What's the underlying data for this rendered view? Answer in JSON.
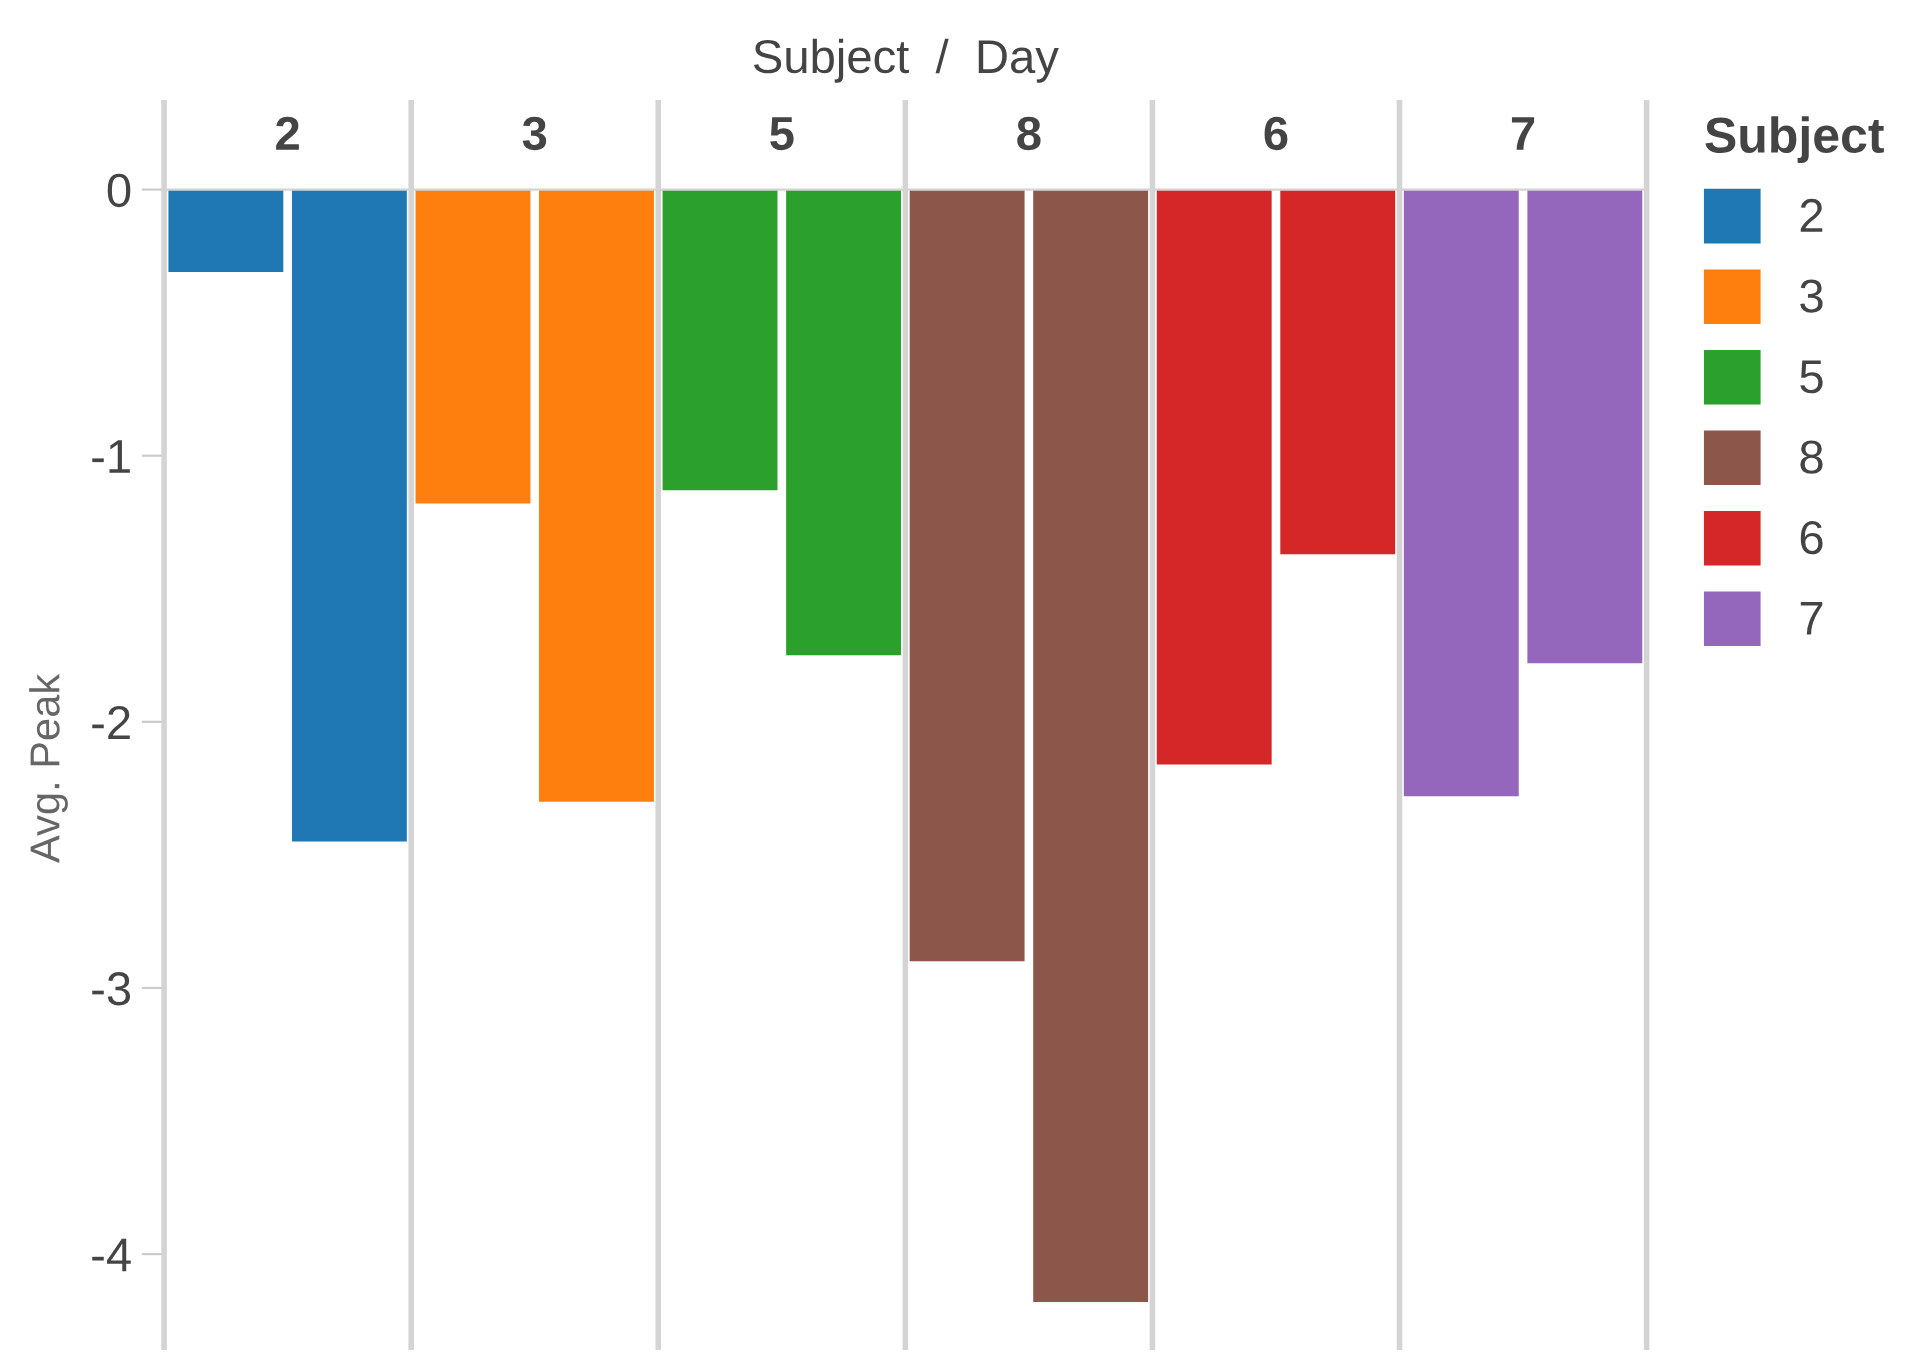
{
  "chart_data": {
    "type": "bar",
    "xlabel": "Subject  /  Day",
    "ylabel": "Avg. Peak",
    "legend_title": "Subject",
    "legend": "right",
    "categories": [
      null,
      null,
      null,
      null,
      null,
      null,
      null,
      null,
      null,
      null,
      null,
      null
    ],
    "series": [
      {
        "name": "2",
        "color": "#1f77b4",
        "values": [
          -0.31,
          -2.45,
          null,
          null,
          null,
          null,
          null,
          null,
          null,
          null,
          null,
          null
        ]
      },
      {
        "name": "3",
        "color": "#ff7f0e",
        "values": [
          null,
          null,
          -1.18,
          -2.3,
          null,
          null,
          null,
          null,
          null,
          null,
          null,
          null
        ]
      },
      {
        "name": "5",
        "color": "#2ca02c",
        "values": [
          null,
          null,
          null,
          null,
          -1.13,
          -1.75,
          null,
          null,
          null,
          null,
          null,
          null
        ]
      },
      {
        "name": "8",
        "color": "#8c564b",
        "values": [
          null,
          null,
          null,
          null,
          null,
          null,
          -2.9,
          -4.18,
          null,
          null,
          null,
          null
        ]
      },
      {
        "name": "6",
        "color": "#d62728",
        "values": [
          null,
          null,
          null,
          null,
          null,
          null,
          null,
          null,
          -2.16,
          -1.37,
          null,
          null
        ]
      },
      {
        "name": "7",
        "color": "#9467bd",
        "values": [
          null,
          null,
          null,
          null,
          null,
          null,
          null,
          null,
          null,
          null,
          -2.28,
          -1.78
        ]
      }
    ],
    "ylim": [
      -4.35,
      0
    ],
    "yticks": [
      0,
      -1,
      -2,
      -3,
      -4
    ],
    "grid": false
  }
}
